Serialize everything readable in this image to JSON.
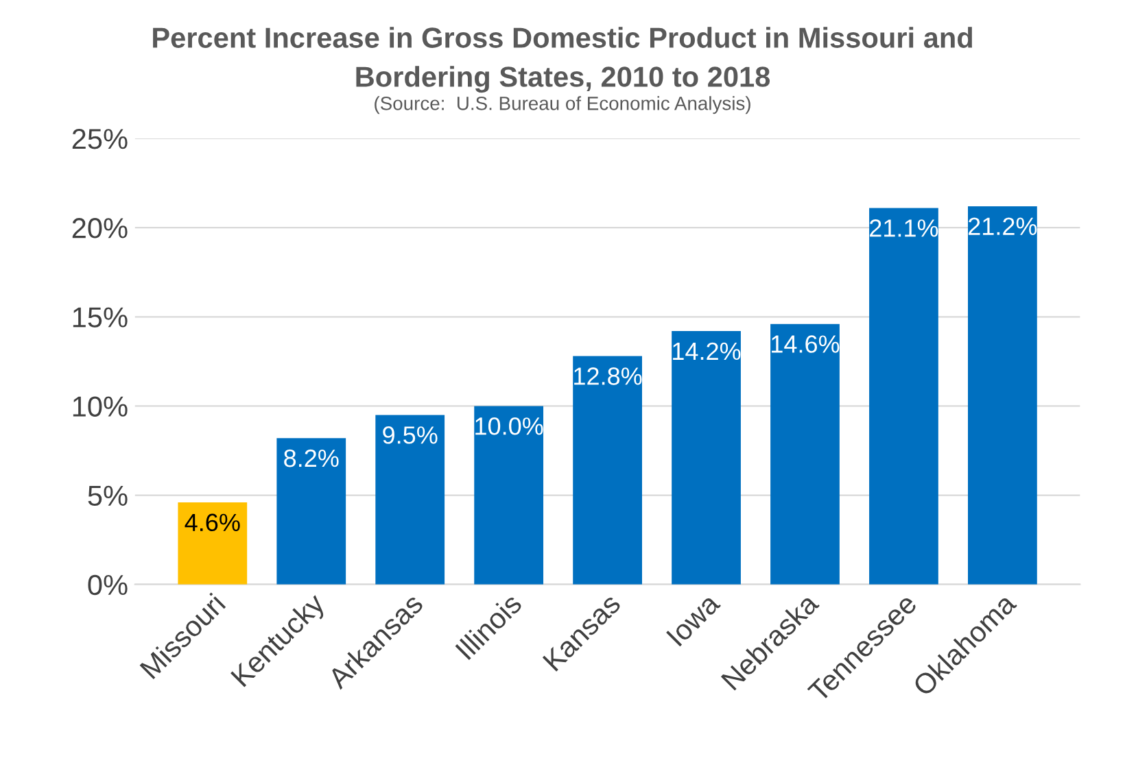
{
  "chart_data": {
    "type": "bar",
    "title": "Percent Increase in Gross Domestic Product in Missouri and\nBordering States, 2010 to 2018",
    "annotations": [
      "(Source:  U.S. Bureau of Economic Analysis)"
    ],
    "categories": [
      "Missouri",
      "Kentucky",
      "Arkansas",
      "Illinois",
      "Kansas",
      "Iowa",
      "Nebraska",
      "Tennessee",
      "Oklahoma"
    ],
    "values": [
      4.6,
      8.2,
      9.5,
      10.0,
      12.8,
      14.2,
      14.6,
      21.1,
      21.2
    ],
    "colors": [
      "#ffc000",
      "#0070c0",
      "#0070c0",
      "#0070c0",
      "#0070c0",
      "#0070c0",
      "#0070c0",
      "#0070c0",
      "#0070c0"
    ],
    "value_labels": [
      "4.6%",
      "8.2%",
      "9.5%",
      "10.0%",
      "12.8%",
      "14.2%",
      "14.6%",
      "21.1%",
      "21.2%"
    ],
    "ylim": [
      0,
      25
    ],
    "yticks": [
      {
        "value": 0,
        "label": "0%"
      },
      {
        "value": 5,
        "label": "5%"
      },
      {
        "value": 10,
        "label": "10%"
      },
      {
        "value": 15,
        "label": "15%"
      },
      {
        "value": 20,
        "label": "20%"
      },
      {
        "value": 25,
        "label": "25%"
      }
    ],
    "grid": "y",
    "legend": false
  }
}
